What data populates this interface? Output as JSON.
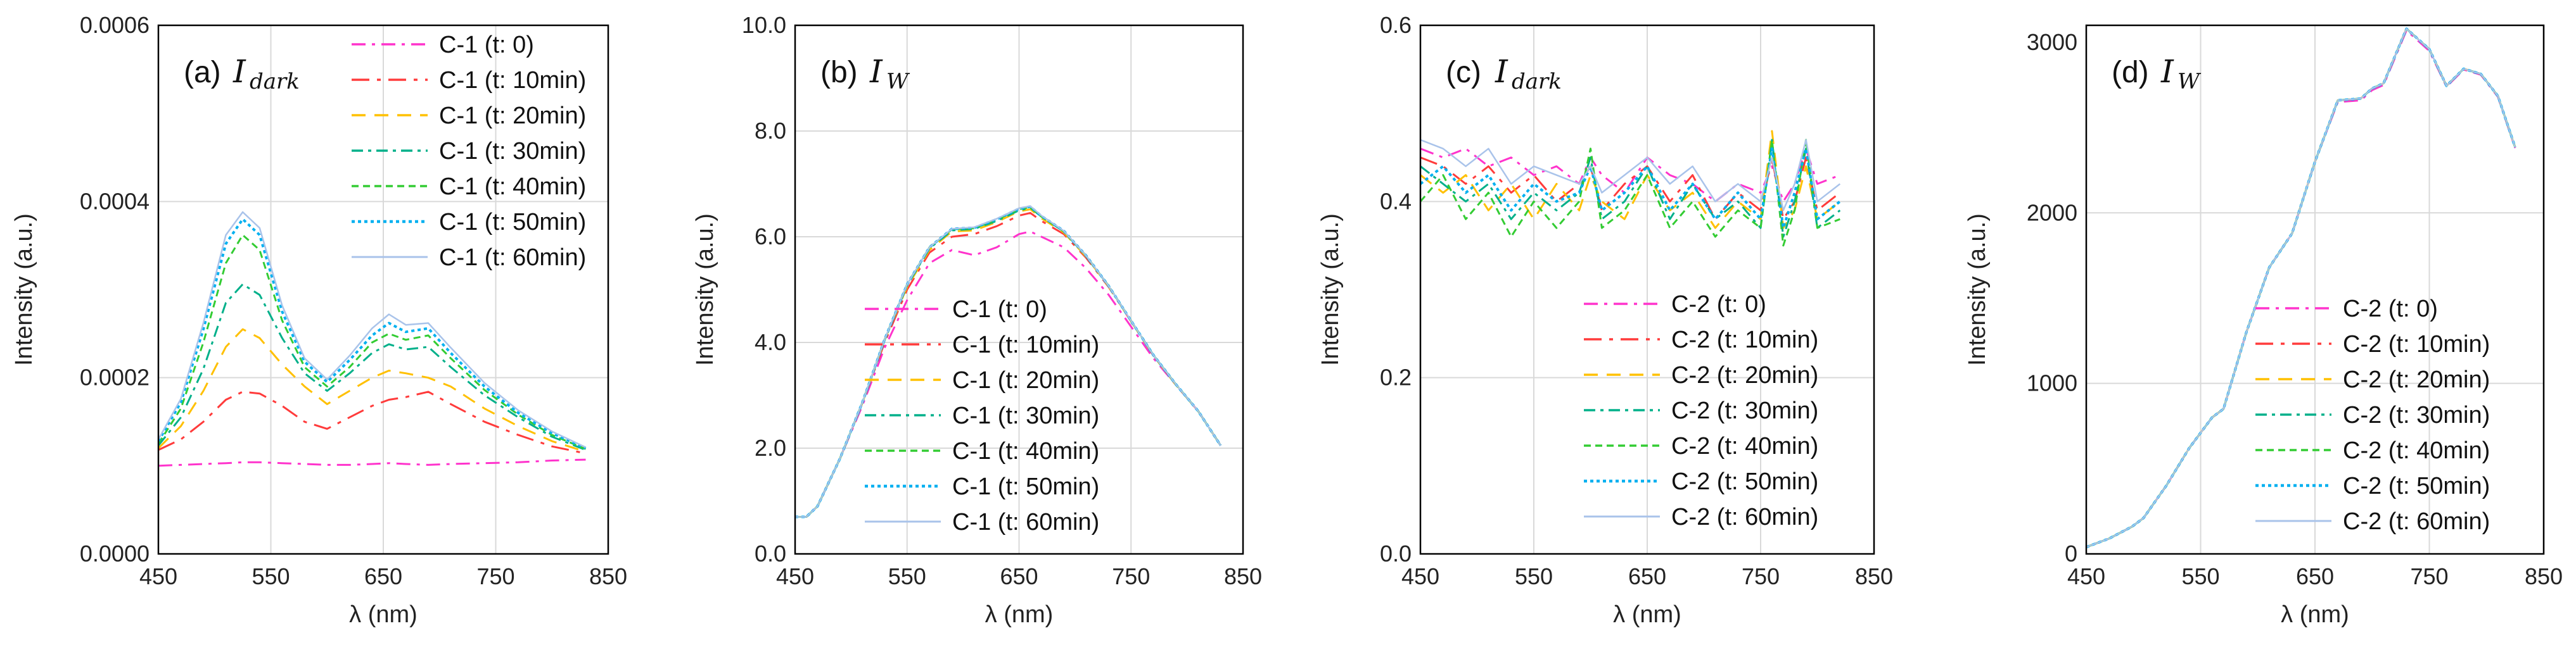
{
  "series_styles": [
    {
      "color": "#ff33cc",
      "dash": "22,10,5,10",
      "width": 3
    },
    {
      "color": "#ff3b3b",
      "dash": "28,12,6,12",
      "width": 3
    },
    {
      "color": "#ffc000",
      "dash": "22,14",
      "width": 3
    },
    {
      "color": "#00b08a",
      "dash": "18,8,5,8",
      "width": 3
    },
    {
      "color": "#33cc33",
      "dash": "11,7",
      "width": 3
    },
    {
      "color": "#00b0f0",
      "dash": "5,5",
      "width": 4
    },
    {
      "color": "#a9c3ea",
      "dash": "",
      "width": 2.5
    }
  ],
  "chart_data": [
    {
      "type": "line",
      "panel_label": "(a)",
      "panel_symbol": "I",
      "panel_subscript": "dark",
      "xlabel": "λ (nm)",
      "ylabel": "Intensity (a.u.)",
      "xlim": [
        450,
        850
      ],
      "ylim": [
        0,
        0.0006
      ],
      "xticks": [
        "450",
        "550",
        "650",
        "750",
        "850"
      ],
      "yticks": [
        "0.0000",
        "0.0002",
        "0.0004",
        "0.0006"
      ],
      "legend_position": "top-right",
      "x": [
        450,
        470,
        490,
        510,
        525,
        540,
        560,
        580,
        600,
        620,
        640,
        655,
        670,
        690,
        710,
        740,
        770,
        800,
        830
      ],
      "series": [
        {
          "name": "C-1 (t: 0)",
          "values": [
            0.0001,
            0.000101,
            0.000102,
            0.000103,
            0.000104,
            0.000104,
            0.000103,
            0.000102,
            0.000101,
            0.000101,
            0.000102,
            0.000103,
            0.000102,
            0.000101,
            0.000102,
            0.000103,
            0.000104,
            0.000106,
            0.000107
          ]
        },
        {
          "name": "C-1 (t: 10min)",
          "values": [
            0.000118,
            0.00013,
            0.00015,
            0.000175,
            0.000184,
            0.000182,
            0.000168,
            0.00015,
            0.000142,
            0.000155,
            0.000168,
            0.000175,
            0.000178,
            0.000184,
            0.00017,
            0.00015,
            0.000135,
            0.000122,
            0.000114
          ]
        },
        {
          "name": "C-1 (t: 20min)",
          "values": [
            0.00012,
            0.000145,
            0.000185,
            0.000235,
            0.000255,
            0.000245,
            0.000215,
            0.00019,
            0.00017,
            0.000185,
            0.0002,
            0.000208,
            0.000205,
            0.0002,
            0.00019,
            0.000165,
            0.000145,
            0.000128,
            0.000116
          ]
        },
        {
          "name": "C-1 (t: 30min)",
          "values": [
            0.000123,
            0.000155,
            0.00021,
            0.000285,
            0.000306,
            0.000294,
            0.000245,
            0.000205,
            0.000185,
            0.000205,
            0.000228,
            0.000238,
            0.000232,
            0.000235,
            0.000212,
            0.00018,
            0.000155,
            0.000133,
            0.000118
          ]
        },
        {
          "name": "C-1 (t: 40min)",
          "values": [
            0.000125,
            0.000165,
            0.00024,
            0.00033,
            0.000362,
            0.000345,
            0.000265,
            0.000212,
            0.00019,
            0.000212,
            0.00024,
            0.00025,
            0.000243,
            0.000248,
            0.000222,
            0.000186,
            0.000158,
            0.000135,
            0.000119
          ]
        },
        {
          "name": "C-1 (t: 50min)",
          "values": [
            0.000128,
            0.000172,
            0.000255,
            0.000352,
            0.00038,
            0.000362,
            0.000275,
            0.000218,
            0.000195,
            0.00022,
            0.000248,
            0.000262,
            0.000252,
            0.000256,
            0.000228,
            0.00019,
            0.00016,
            0.000137,
            0.00012
          ]
        },
        {
          "name": "C-1 (t: 60min)",
          "values": [
            0.00013,
            0.000176,
            0.000262,
            0.000362,
            0.000388,
            0.00037,
            0.000282,
            0.000222,
            0.000198,
            0.000225,
            0.000256,
            0.000272,
            0.00026,
            0.000262,
            0.000234,
            0.000194,
            0.000163,
            0.000139,
            0.000121
          ]
        }
      ]
    },
    {
      "type": "line",
      "panel_label": "(b)",
      "panel_symbol": "I",
      "panel_subscript": "W",
      "xlabel": "λ (nm)",
      "ylabel": "Intensity (a.u.)",
      "xlim": [
        450,
        850
      ],
      "ylim": [
        0,
        10
      ],
      "xticks": [
        "450",
        "550",
        "650",
        "750",
        "850"
      ],
      "yticks": [
        "0.0",
        "2.0",
        "4.0",
        "6.0",
        "8.0",
        "10.0"
      ],
      "legend_position": "bottom-center",
      "x": [
        450,
        460,
        470,
        490,
        510,
        530,
        550,
        570,
        590,
        610,
        630,
        650,
        660,
        670,
        690,
        710,
        730,
        750,
        770,
        790,
        810,
        830
      ],
      "series": [
        {
          "name": "C-1 (t: 0)",
          "values": [
            0.7,
            0.7,
            0.9,
            1.8,
            2.8,
            3.9,
            4.8,
            5.5,
            5.75,
            5.65,
            5.8,
            6.05,
            6.1,
            6.0,
            5.8,
            5.4,
            4.9,
            4.3,
            3.7,
            3.2,
            2.7,
            2.05
          ]
        },
        {
          "name": "C-1 (t: 10min)",
          "values": [
            0.7,
            0.7,
            0.9,
            1.8,
            2.85,
            4.0,
            5.0,
            5.7,
            6.0,
            6.05,
            6.2,
            6.4,
            6.45,
            6.3,
            6.05,
            5.6,
            5.05,
            4.4,
            3.75,
            3.2,
            2.7,
            2.05
          ]
        },
        {
          "name": "C-1 (t: 20min)",
          "values": [
            0.7,
            0.7,
            0.9,
            1.8,
            2.85,
            4.05,
            5.05,
            5.75,
            6.1,
            6.12,
            6.28,
            6.48,
            6.52,
            6.35,
            6.08,
            5.62,
            5.06,
            4.4,
            3.75,
            3.2,
            2.7,
            2.05
          ]
        },
        {
          "name": "C-1 (t: 30min)",
          "values": [
            0.7,
            0.7,
            0.9,
            1.8,
            2.85,
            4.05,
            5.08,
            5.78,
            6.12,
            6.15,
            6.3,
            6.5,
            6.55,
            6.38,
            6.1,
            5.63,
            5.07,
            4.41,
            3.76,
            3.21,
            2.7,
            2.05
          ]
        },
        {
          "name": "C-1 (t: 40min)",
          "values": [
            0.7,
            0.7,
            0.9,
            1.8,
            2.86,
            4.06,
            5.1,
            5.8,
            6.14,
            6.16,
            6.32,
            6.52,
            6.56,
            6.38,
            6.1,
            5.64,
            5.07,
            4.41,
            3.76,
            3.21,
            2.7,
            2.05
          ]
        },
        {
          "name": "C-1 (t: 50min)",
          "values": [
            0.7,
            0.7,
            0.9,
            1.8,
            2.86,
            4.06,
            5.1,
            5.8,
            6.15,
            6.17,
            6.33,
            6.53,
            6.57,
            6.39,
            6.11,
            5.64,
            5.07,
            4.41,
            3.76,
            3.21,
            2.7,
            2.05
          ]
        },
        {
          "name": "C-1 (t: 60min)",
          "values": [
            0.7,
            0.7,
            0.9,
            1.8,
            2.86,
            4.06,
            5.1,
            5.8,
            6.15,
            6.18,
            6.34,
            6.54,
            6.58,
            6.4,
            6.11,
            5.64,
            5.07,
            4.41,
            3.76,
            3.21,
            2.7,
            2.05
          ]
        }
      ]
    },
    {
      "type": "line",
      "panel_label": "(c)",
      "panel_symbol": "I",
      "panel_subscript": "dark",
      "xlabel": "λ (nm)",
      "ylabel": "Intensity (a.u.)",
      "xlim": [
        450,
        850
      ],
      "ylim": [
        0,
        0.6
      ],
      "xticks": [
        "450",
        "550",
        "650",
        "750",
        "850"
      ],
      "yticks": [
        "0.0",
        "0.2",
        "0.4",
        "0.6"
      ],
      "legend_position": "bottom-right",
      "x": [
        450,
        470,
        490,
        510,
        530,
        550,
        570,
        590,
        600,
        610,
        630,
        650,
        670,
        690,
        710,
        730,
        750,
        760,
        770,
        780,
        790,
        800,
        820
      ],
      "series": [
        {
          "name": "C-2 (t: 0)",
          "values": [
            0.46,
            0.45,
            0.46,
            0.44,
            0.45,
            0.43,
            0.44,
            0.42,
            0.45,
            0.43,
            0.41,
            0.45,
            0.43,
            0.42,
            0.4,
            0.42,
            0.41,
            0.44,
            0.4,
            0.42,
            0.46,
            0.42,
            0.43
          ]
        },
        {
          "name": "C-2 (t: 10min)",
          "values": [
            0.45,
            0.44,
            0.42,
            0.44,
            0.41,
            0.43,
            0.4,
            0.42,
            0.44,
            0.39,
            0.42,
            0.44,
            0.4,
            0.43,
            0.38,
            0.41,
            0.39,
            0.45,
            0.38,
            0.4,
            0.45,
            0.39,
            0.41
          ]
        },
        {
          "name": "C-2 (t: 20min)",
          "values": [
            0.43,
            0.41,
            0.43,
            0.39,
            0.42,
            0.38,
            0.42,
            0.39,
            0.43,
            0.4,
            0.38,
            0.43,
            0.39,
            0.41,
            0.37,
            0.4,
            0.38,
            0.48,
            0.37,
            0.39,
            0.44,
            0.38,
            0.4
          ]
        },
        {
          "name": "C-2 (t: 30min)",
          "values": [
            0.44,
            0.42,
            0.4,
            0.42,
            0.38,
            0.41,
            0.39,
            0.41,
            0.45,
            0.38,
            0.4,
            0.44,
            0.38,
            0.42,
            0.38,
            0.4,
            0.37,
            0.47,
            0.36,
            0.4,
            0.46,
            0.37,
            0.39
          ]
        },
        {
          "name": "C-2 (t: 40min)",
          "values": [
            0.4,
            0.43,
            0.38,
            0.41,
            0.36,
            0.4,
            0.37,
            0.4,
            0.46,
            0.37,
            0.39,
            0.43,
            0.37,
            0.4,
            0.36,
            0.39,
            0.37,
            0.47,
            0.35,
            0.39,
            0.47,
            0.37,
            0.38
          ]
        },
        {
          "name": "C-2 (t: 50min)",
          "values": [
            0.42,
            0.44,
            0.41,
            0.43,
            0.39,
            0.42,
            0.4,
            0.41,
            0.44,
            0.39,
            0.41,
            0.44,
            0.39,
            0.42,
            0.38,
            0.41,
            0.38,
            0.46,
            0.37,
            0.41,
            0.46,
            0.38,
            0.4
          ]
        },
        {
          "name": "C-2 (t: 60min)",
          "values": [
            0.47,
            0.46,
            0.44,
            0.46,
            0.42,
            0.44,
            0.43,
            0.42,
            0.44,
            0.41,
            0.43,
            0.45,
            0.42,
            0.44,
            0.4,
            0.42,
            0.4,
            0.45,
            0.39,
            0.42,
            0.47,
            0.4,
            0.42
          ]
        }
      ]
    },
    {
      "type": "line",
      "panel_label": "(d)",
      "panel_symbol": "I",
      "panel_subscript": "W",
      "xlabel": "λ (nm)",
      "ylabel": "Intensity (a.u.)",
      "xlim": [
        450,
        850
      ],
      "ylim": [
        0,
        3100
      ],
      "xticks": [
        "450",
        "550",
        "650",
        "750",
        "850"
      ],
      "yticks": [
        "0",
        "1000",
        "2000",
        "3000"
      ],
      "legend_position": "bottom-right",
      "x": [
        450,
        470,
        490,
        500,
        520,
        540,
        560,
        570,
        590,
        610,
        630,
        650,
        670,
        690,
        700,
        710,
        730,
        750,
        765,
        780,
        795,
        810,
        825
      ],
      "series": [
        {
          "name": "C-2 (t: 0)",
          "values": [
            40,
            90,
            160,
            210,
            400,
            620,
            800,
            850,
            1300,
            1680,
            1880,
            2300,
            2650,
            2660,
            2720,
            2750,
            3070,
            2950,
            2740,
            2840,
            2810,
            2680,
            2380
          ]
        },
        {
          "name": "C-2 (t: 10min)",
          "values": [
            40,
            90,
            160,
            210,
            400,
            620,
            800,
            850,
            1300,
            1680,
            1880,
            2300,
            2660,
            2670,
            2730,
            2760,
            3080,
            2960,
            2745,
            2845,
            2815,
            2685,
            2385
          ]
        },
        {
          "name": "C-2 (t: 20min)",
          "values": [
            40,
            90,
            160,
            210,
            400,
            620,
            800,
            850,
            1300,
            1680,
            1880,
            2300,
            2660,
            2670,
            2730,
            2760,
            3080,
            2960,
            2745,
            2845,
            2815,
            2685,
            2385
          ]
        },
        {
          "name": "C-2 (t: 30min)",
          "values": [
            40,
            90,
            160,
            210,
            400,
            620,
            800,
            850,
            1300,
            1680,
            1880,
            2300,
            2660,
            2670,
            2730,
            2760,
            3080,
            2960,
            2745,
            2845,
            2815,
            2685,
            2385
          ]
        },
        {
          "name": "C-2 (t: 40min)",
          "values": [
            40,
            90,
            160,
            210,
            400,
            620,
            800,
            850,
            1300,
            1680,
            1880,
            2300,
            2660,
            2670,
            2730,
            2760,
            3080,
            2960,
            2745,
            2845,
            2815,
            2685,
            2385
          ]
        },
        {
          "name": "C-2 (t: 50min)",
          "values": [
            40,
            90,
            160,
            210,
            400,
            620,
            800,
            850,
            1300,
            1680,
            1880,
            2300,
            2660,
            2670,
            2730,
            2760,
            3080,
            2960,
            2745,
            2845,
            2815,
            2685,
            2385
          ]
        },
        {
          "name": "C-2 (t: 60min)",
          "values": [
            40,
            90,
            160,
            210,
            400,
            620,
            800,
            850,
            1300,
            1680,
            1880,
            2300,
            2660,
            2670,
            2730,
            2760,
            3080,
            2960,
            2745,
            2845,
            2815,
            2685,
            2385
          ]
        }
      ]
    }
  ]
}
